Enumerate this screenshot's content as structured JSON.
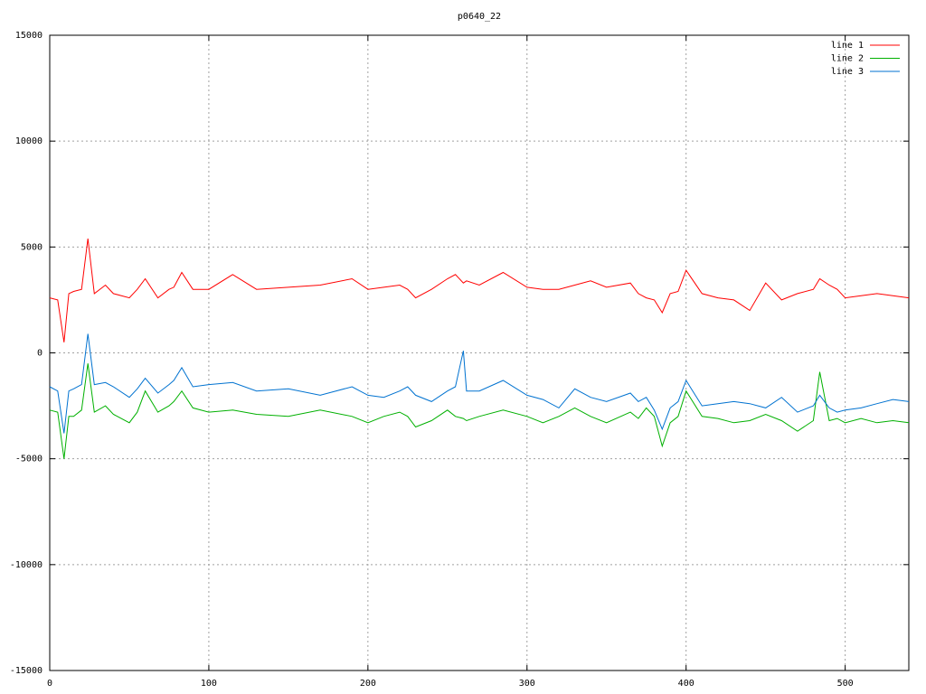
{
  "chart_data": {
    "type": "line",
    "title": "p0640_22",
    "x": [
      0,
      5,
      9,
      12,
      15,
      20,
      24,
      28,
      35,
      40,
      50,
      55,
      60,
      68,
      75,
      78,
      83,
      90,
      100,
      115,
      130,
      150,
      170,
      190,
      200,
      210,
      220,
      225,
      230,
      240,
      250,
      255,
      260,
      262,
      270,
      285,
      300,
      310,
      320,
      330,
      340,
      350,
      365,
      370,
      375,
      380,
      385,
      390,
      395,
      400,
      410,
      420,
      430,
      440,
      450,
      460,
      470,
      480,
      484,
      490,
      495,
      500,
      510,
      520,
      530,
      540
    ],
    "series": [
      {
        "name": "line 1",
        "color": "#ff0000",
        "values": [
          2600,
          2500,
          500,
          2800,
          2900,
          3000,
          5400,
          2800,
          3200,
          2800,
          2600,
          3000,
          3500,
          2600,
          3000,
          3100,
          3800,
          3000,
          3000,
          3700,
          3000,
          3100,
          3200,
          3500,
          3000,
          3100,
          3200,
          3000,
          2600,
          3000,
          3500,
          3700,
          3300,
          3400,
          3200,
          3800,
          3100,
          3000,
          3000,
          3200,
          3400,
          3100,
          3300,
          2800,
          2600,
          2500,
          1900,
          2800,
          2900,
          3900,
          2800,
          2600,
          2500,
          2000,
          3300,
          2500,
          2800,
          3000,
          3500,
          3200,
          3000,
          2600,
          2700,
          2800,
          2700,
          2600
        ]
      },
      {
        "name": "line 2",
        "color": "#00b000",
        "values": [
          -2700,
          -2800,
          -5000,
          -3000,
          -3000,
          -2700,
          -500,
          -2800,
          -2500,
          -2900,
          -3300,
          -2800,
          -1800,
          -2800,
          -2500,
          -2300,
          -1800,
          -2600,
          -2800,
          -2700,
          -2900,
          -3000,
          -2700,
          -3000,
          -3300,
          -3000,
          -2800,
          -3000,
          -3500,
          -3200,
          -2700,
          -3000,
          -3100,
          -3200,
          -3000,
          -2700,
          -3000,
          -3300,
          -3000,
          -2600,
          -3000,
          -3300,
          -2800,
          -3100,
          -2600,
          -3000,
          -4400,
          -3300,
          -3000,
          -1800,
          -3000,
          -3100,
          -3300,
          -3200,
          -2900,
          -3200,
          -3700,
          -3200,
          -900,
          -3200,
          -3100,
          -3300,
          -3100,
          -3300,
          -3200,
          -3300
        ]
      },
      {
        "name": "line 3",
        "color": "#0072d0",
        "values": [
          -1600,
          -1800,
          -3800,
          -1800,
          -1700,
          -1500,
          900,
          -1500,
          -1400,
          -1600,
          -2100,
          -1700,
          -1200,
          -1900,
          -1500,
          -1300,
          -700,
          -1600,
          -1500,
          -1400,
          -1800,
          -1700,
          -2000,
          -1600,
          -2000,
          -2100,
          -1800,
          -1600,
          -2000,
          -2300,
          -1800,
          -1600,
          100,
          -1800,
          -1800,
          -1300,
          -2000,
          -2200,
          -2600,
          -1700,
          -2100,
          -2300,
          -1900,
          -2300,
          -2100,
          -2700,
          -3600,
          -2600,
          -2300,
          -1300,
          -2500,
          -2400,
          -2300,
          -2400,
          -2600,
          -2100,
          -2800,
          -2500,
          -2000,
          -2600,
          -2800,
          -2700,
          -2600,
          -2400,
          -2200,
          -2300
        ]
      }
    ],
    "xlim": [
      0,
      540
    ],
    "xticks": [
      0,
      100,
      200,
      300,
      400,
      500
    ],
    "ylim": [
      -15000,
      15000
    ],
    "yticks": [
      -15000,
      -10000,
      -5000,
      0,
      5000,
      10000,
      15000
    ],
    "grid": true,
    "legend": "top-right"
  }
}
